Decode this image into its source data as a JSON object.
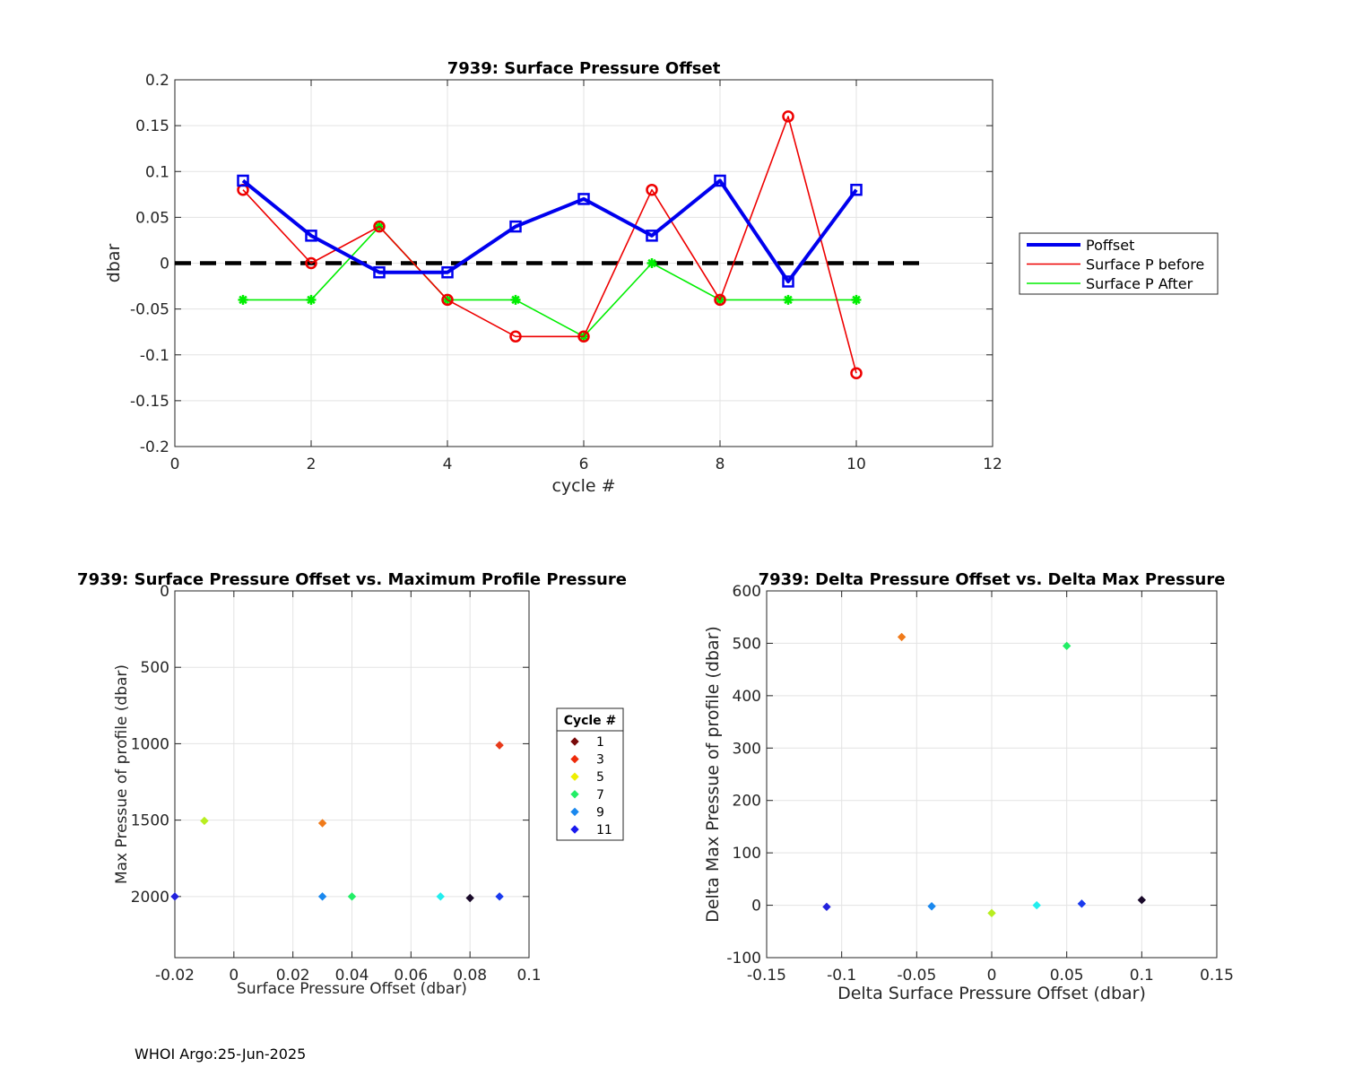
{
  "footer": "WHOI Argo:25-Jun-2025",
  "chart_data": [
    {
      "type": "line",
      "title": "7939: Surface Pressure Offset",
      "xlabel": "cycle #",
      "ylabel": "dbar",
      "xlim": [
        0,
        12
      ],
      "ylim": [
        -0.2,
        0.2
      ],
      "xticks": [
        "0",
        "2",
        "4",
        "6",
        "8",
        "10",
        "12"
      ],
      "yticks": [
        "0.2",
        "0.15",
        "0.1",
        "0.05",
        "0",
        "-0.05",
        "-0.1",
        "-0.15",
        "-0.2"
      ],
      "grid": true,
      "legend_position": "outside-right",
      "reference_line": {
        "y": 0,
        "x": [
          0,
          11
        ],
        "style": "dashed",
        "color": "#000000"
      },
      "series": [
        {
          "name": "Poffset",
          "color": "#0000ee",
          "marker": "square",
          "x": [
            1,
            2,
            3,
            4,
            5,
            6,
            7,
            8,
            9,
            10
          ],
          "y": [
            0.09,
            0.03,
            -0.01,
            -0.01,
            0.04,
            0.07,
            0.03,
            0.09,
            -0.02,
            0.08
          ]
        },
        {
          "name": "Surface P before",
          "color": "#ee0000",
          "marker": "circle",
          "x": [
            1,
            2,
            3,
            4,
            5,
            6,
            7,
            8,
            9,
            10
          ],
          "y": [
            0.08,
            0.0,
            0.04,
            -0.04,
            -0.08,
            -0.08,
            0.08,
            -0.04,
            0.16,
            -0.12
          ]
        },
        {
          "name": "Surface P After",
          "color": "#00ee00",
          "marker": "asterisk",
          "x": [
            1,
            2,
            3,
            4,
            5,
            6,
            7,
            8,
            9,
            10
          ],
          "y": [
            -0.04,
            -0.04,
            0.04,
            -0.04,
            -0.04,
            -0.08,
            0.0,
            -0.04,
            -0.04,
            -0.04
          ]
        }
      ]
    },
    {
      "type": "scatter",
      "title": "7939: Surface Pressure Offset vs. Maximum Profile Pressure",
      "xlabel": "Surface Pressure Offset (dbar)",
      "ylabel": "Max Pressue of profile (dbar)",
      "xlim": [
        -0.02,
        0.1
      ],
      "ylim": [
        0,
        2400
      ],
      "y_reversed": true,
      "xticks": [
        "-0.02",
        "0",
        "0.02",
        "0.04",
        "0.06",
        "0.08",
        "0.1"
      ],
      "yticks": [
        "0",
        "500",
        "1000",
        "1500",
        "2000"
      ],
      "grid": true,
      "points": [
        {
          "x": 0.08,
          "y": 2010,
          "color": "#1a0a2a"
        },
        {
          "x": 0.09,
          "y": 1010,
          "color": "#e83a1a"
        },
        {
          "x": 0.03,
          "y": 1520,
          "color": "#f07a1a"
        },
        {
          "x": -0.01,
          "y": 1505,
          "color": "#b8ee20"
        },
        {
          "x": 0.04,
          "y": 2000,
          "color": "#22ee66"
        },
        {
          "x": 0.07,
          "y": 2000,
          "color": "#22eeee"
        },
        {
          "x": 0.03,
          "y": 2000,
          "color": "#1a88ee"
        },
        {
          "x": 0.09,
          "y": 2000,
          "color": "#1a3aee"
        },
        {
          "x": -0.02,
          "y": 2000,
          "color": "#2222dd"
        }
      ],
      "legend": {
        "title": "Cycle #",
        "entries": [
          {
            "label": "1",
            "color": "#7a0a0a"
          },
          {
            "label": "3",
            "color": "#ee2a0a"
          },
          {
            "label": "5",
            "color": "#eeee00"
          },
          {
            "label": "7",
            "color": "#22ee66"
          },
          {
            "label": "9",
            "color": "#1a88ee"
          },
          {
            "label": "11",
            "color": "#1a1aee"
          }
        ]
      }
    },
    {
      "type": "scatter",
      "title": "7939: Delta Pressure Offset vs. Delta Max Pressure",
      "xlabel": "Delta Surface Pressure Offset (dbar)",
      "ylabel": "Delta Max Pressue of profile (dbar)",
      "xlim": [
        -0.15,
        0.15
      ],
      "ylim": [
        -100,
        600
      ],
      "xticks": [
        "-0.15",
        "-0.1",
        "-0.05",
        "0",
        "0.05",
        "0.1",
        "0.15"
      ],
      "yticks": [
        "600",
        "500",
        "400",
        "300",
        "200",
        "100",
        "0",
        "-100"
      ],
      "grid": true,
      "points": [
        {
          "x": 0.1,
          "y": 10,
          "color": "#1a0a2a"
        },
        {
          "x": -0.06,
          "y": 512,
          "color": "#f07a1a"
        },
        {
          "x": 0.0,
          "y": -15,
          "color": "#b8ee20"
        },
        {
          "x": 0.05,
          "y": 495,
          "color": "#22ee66"
        },
        {
          "x": 0.03,
          "y": 0,
          "color": "#22eeee"
        },
        {
          "x": -0.04,
          "y": -2,
          "color": "#1a88ee"
        },
        {
          "x": 0.06,
          "y": 3,
          "color": "#1a3aee"
        },
        {
          "x": -0.11,
          "y": -3,
          "color": "#2222dd"
        }
      ]
    }
  ]
}
